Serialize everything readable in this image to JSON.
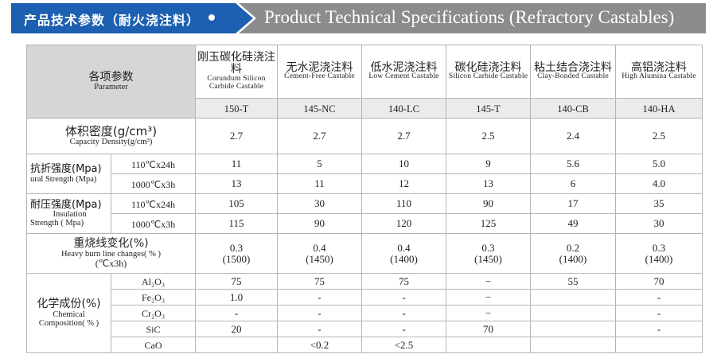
{
  "banner": {
    "title_cn": "产品技术参数（耐火浇注料）",
    "title_en": "Product Technical Specifications (Refractory Castables)"
  },
  "table": {
    "param_header": {
      "cn": "各项参数",
      "en": "Parameter"
    },
    "columns": [
      {
        "cn": "刚玉碳化硅浇注料",
        "en": "Corundum Silicon Carbide Castable",
        "code": "150-T"
      },
      {
        "cn": "无水泥浇注料",
        "en": "Cement-Free Castable",
        "code": "145-NC"
      },
      {
        "cn": "低水泥浇注料",
        "en": "Low Cement Castable",
        "code": "140-LC"
      },
      {
        "cn": "碳化硅浇注料",
        "en": "Silicon Carbide Castable",
        "code": "145-T"
      },
      {
        "cn": "粘土结合浇注料",
        "en": "Clay-Bonded Castable",
        "code": "140-CB"
      },
      {
        "cn": "高铝浇注料",
        "en": "High Alumina Castable",
        "code": "140-HA"
      }
    ],
    "density": {
      "cn": "体积密度(g/cm³)",
      "en": "Capacity Density(g/cm³)",
      "values": [
        "2.7",
        "2.7",
        "2.7",
        "2.5",
        "2.4",
        "2.5"
      ]
    },
    "flexural": {
      "cn": "抗折强度(Mpa)",
      "en": "ural Strength (Mpa)",
      "rows": [
        {
          "cond": "110℃x24h",
          "values": [
            "11",
            "5",
            "10",
            "9",
            "5.6",
            "5.0"
          ]
        },
        {
          "cond": "1000℃x3h",
          "values": [
            "13",
            "11",
            "12",
            "13",
            "6",
            "4.0"
          ]
        }
      ]
    },
    "compressive": {
      "cn": "耐压强度(Mpa)",
      "en1": "Insulation",
      "en2": "Strength ( Mpa)",
      "rows": [
        {
          "cond": "110℃x24h",
          "values": [
            "105",
            "30",
            "110",
            "90",
            "17",
            "35"
          ]
        },
        {
          "cond": "1000℃x3h",
          "values": [
            "115",
            "90",
            "120",
            "125",
            "49",
            "30"
          ]
        }
      ]
    },
    "burn": {
      "cn": "重烧线变化(%)",
      "en": "Heavy burn line changes( % )",
      "cond": "(℃x3h)",
      "values": [
        {
          "v": "0.3",
          "t": "(1500)"
        },
        {
          "v": "0.4",
          "t": "(1450)"
        },
        {
          "v": "0.4",
          "t": "(1400)"
        },
        {
          "v": "0.3",
          "t": "(1450)"
        },
        {
          "v": "0.2",
          "t": "(1400)"
        },
        {
          "v": "0.3",
          "t": "(1400)"
        }
      ]
    },
    "chemical": {
      "cn": "化学成份(%)",
      "en1": "Chemical",
      "en2": "Composition( % )",
      "rows": [
        {
          "comp": "Al₂O₃",
          "values": [
            "75",
            "75",
            "75",
            "−",
            "55",
            "70"
          ]
        },
        {
          "comp": "Fe₂O₃",
          "values": [
            "1.0",
            "-",
            "-",
            "−",
            "",
            "-"
          ]
        },
        {
          "comp": "Cr₂O₃",
          "values": [
            "-",
            "-",
            "-",
            "−",
            "",
            "-"
          ]
        },
        {
          "comp": "SiC",
          "values": [
            "20",
            "-",
            "-",
            "70",
            "",
            "-"
          ]
        },
        {
          "comp": "CaO",
          "values": [
            "",
            "<0.2",
            "<2.5",
            "",
            "",
            ""
          ]
        }
      ]
    }
  }
}
